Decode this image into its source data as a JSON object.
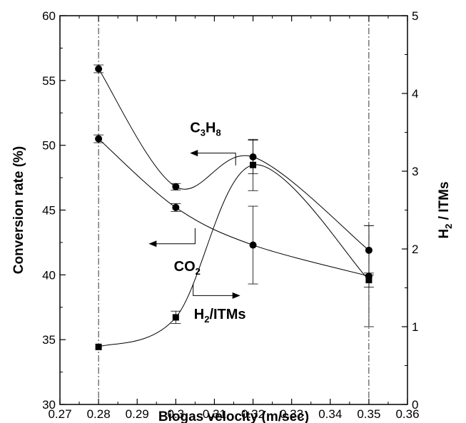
{
  "chart_data": {
    "type": "line",
    "xlabel": "Biogas velocity (m/sec)",
    "ylabel_left": "Conversion rate (%)",
    "ylabel_right_main": "H",
    "ylabel_right_sub": "2",
    "ylabel_right_rest": " / ITMs",
    "xlim": [
      0.27,
      0.36
    ],
    "ylim_left": [
      30,
      60
    ],
    "ylim_right": [
      0,
      5
    ],
    "x_ticks": [
      0.27,
      0.28,
      0.29,
      0.3,
      0.31,
      0.32,
      0.33,
      0.34,
      0.35,
      0.36
    ],
    "x_tick_labels": [
      "0.27",
      "0.28",
      "0.29",
      "0.3",
      "0.31",
      "0.32",
      "0.33",
      "0.34",
      "0.35",
      "0.36"
    ],
    "y_left_ticks": [
      30,
      35,
      40,
      45,
      50,
      55,
      60
    ],
    "y_left_tick_labels": [
      "30",
      "35",
      "40",
      "45",
      "50",
      "55",
      "60"
    ],
    "y_right_ticks": [
      0,
      1,
      2,
      3,
      4,
      5
    ],
    "y_right_tick_labels": [
      "0",
      "1",
      "2",
      "3",
      "4",
      "5"
    ],
    "reference_lines_x": [
      0.28,
      0.35
    ],
    "grid": false,
    "legend": "none (inline annotations with arrows)",
    "series": [
      {
        "name": "C3H8",
        "axis": "left",
        "marker": "circle",
        "x": [
          0.28,
          0.3,
          0.32,
          0.35
        ],
        "y": [
          55.9,
          46.8,
          49.1,
          41.9
        ],
        "err": [
          0.3,
          0.25,
          1.3,
          1.9
        ]
      },
      {
        "name": "CO2",
        "axis": "left",
        "marker": "circle",
        "x": [
          0.28,
          0.3,
          0.32,
          0.35
        ],
        "y": [
          50.5,
          45.2,
          42.3,
          39.9
        ],
        "err": [
          0.3,
          0.3,
          3.0,
          3.9
        ]
      },
      {
        "name": "H2/ITMs",
        "axis": "right",
        "marker": "square",
        "x": [
          0.28,
          0.3,
          0.32,
          0.35
        ],
        "y": [
          0.74,
          1.12,
          3.08,
          1.6
        ],
        "err": [
          0.0,
          0.08,
          0.33,
          0.09
        ]
      }
    ],
    "annotations": [
      {
        "id": "c3h8",
        "parts": [
          "C",
          "3",
          "H",
          "8"
        ],
        "arrow": "left",
        "series": "C3H8"
      },
      {
        "id": "co2",
        "parts": [
          "CO",
          "2"
        ],
        "arrow": "left",
        "series": "CO2"
      },
      {
        "id": "h2",
        "parts": [
          "H",
          "2",
          "/ITMs"
        ],
        "arrow": "right",
        "series": "H2/ITMs"
      }
    ]
  }
}
